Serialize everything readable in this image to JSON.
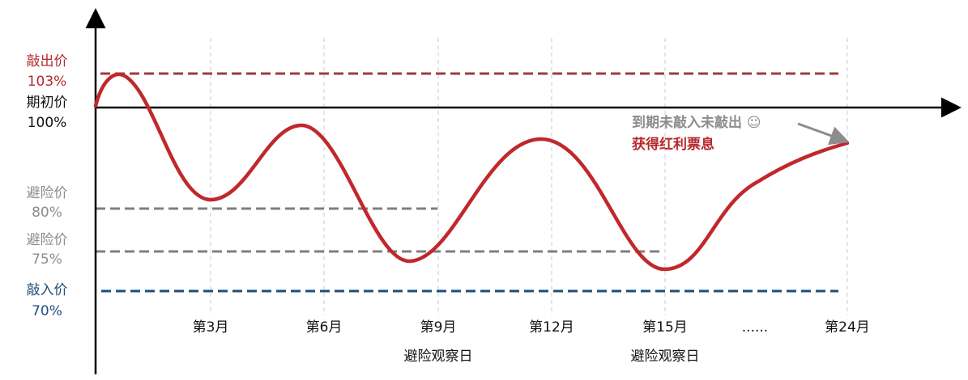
{
  "levels": [
    {
      "name": "敲出价",
      "label": "103%"
    },
    {
      "name": "期初价",
      "label": "100%"
    },
    {
      "name": "避险价",
      "label": "80%"
    },
    {
      "name": "避险价",
      "label": "75%"
    },
    {
      "name": "敲入价",
      "label": "70%"
    }
  ],
  "x_axis": {
    "labels": [
      "第3月",
      "第6月",
      "第9月",
      "第12月",
      "第15月",
      "......",
      "第24月"
    ],
    "observation_labels": [
      "避险观察日",
      "避险观察日"
    ]
  },
  "annotation": {
    "line1": "到期未敲入未敲出 ☺",
    "line2": "获得红利票息"
  }
}
